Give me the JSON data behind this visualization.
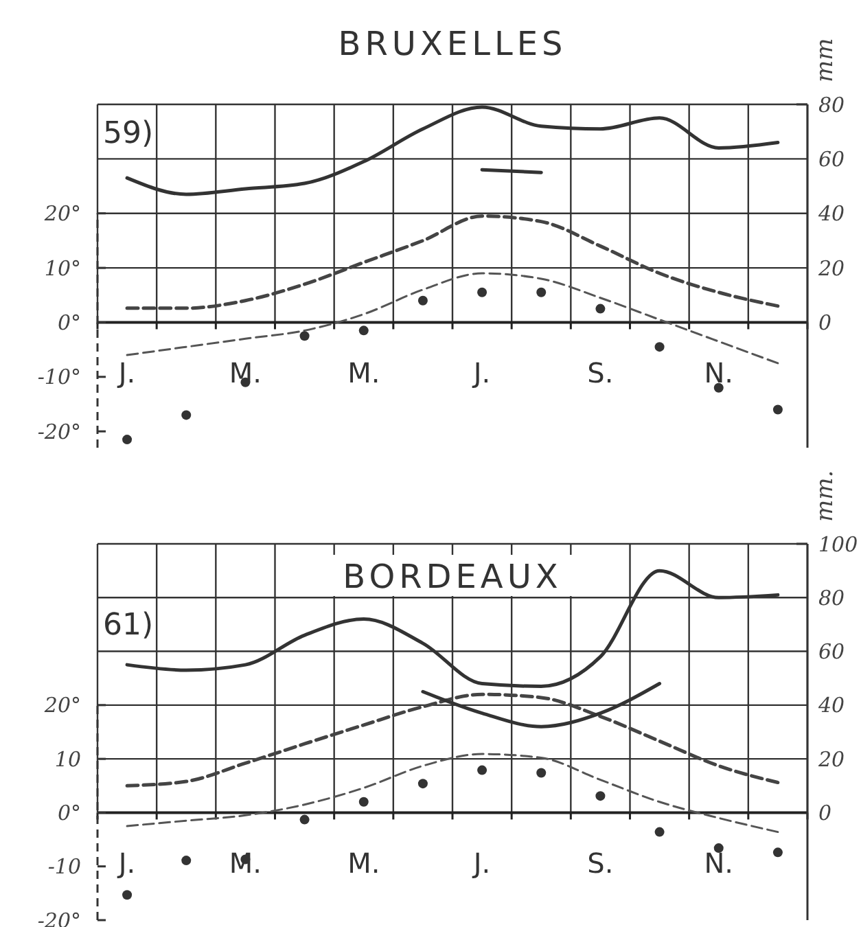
{
  "chart_data": [
    {
      "type": "line",
      "title": "BRUXELLES",
      "annotations": [
        "59)"
      ],
      "y2label": "mm",
      "grid": true,
      "categories": [
        "J.",
        null,
        "M.",
        null,
        "M.",
        null,
        "J.",
        null,
        "S.",
        null,
        "N.",
        null
      ],
      "ylim": [
        -23,
        40
      ],
      "yticks": [
        {
          "value": -20,
          "label": "-20°"
        },
        {
          "value": -10,
          "label": "-10°"
        },
        {
          "value": 0,
          "label": "0°"
        },
        {
          "value": 10,
          "label": "10°"
        },
        {
          "value": 20,
          "label": "20°"
        }
      ],
      "y2lim": [
        -46,
        80
      ],
      "y2ticks": [
        0,
        20,
        40,
        60,
        80
      ],
      "series": [
        {
          "type": "line",
          "axis": "y2",
          "color": "#333333",
          "line_style": "solid",
          "values": [
            53,
            47,
            49,
            51,
            59,
            71,
            79,
            72,
            71,
            75,
            64,
            66
          ]
        },
        {
          "type": "line",
          "color": "#444444",
          "line_style": "dashed",
          "values": [
            2.6,
            2.6,
            4,
            7,
            11,
            15,
            19.5,
            18.5,
            14,
            9,
            5.5,
            3
          ]
        },
        {
          "type": "line",
          "color": "#555555",
          "line_style": "dashed",
          "values": [
            -6,
            -4.5,
            -3,
            -1.5,
            1.5,
            6,
            9,
            8,
            4.5,
            0.5,
            -3.5,
            -7.5
          ]
        },
        {
          "type": "scatter",
          "color": "#333333",
          "marker": "circle",
          "values": [
            -21.5,
            -17,
            -11,
            -2.5,
            -1.5,
            4,
            5.5,
            5.5,
            2.5,
            -4.5,
            -12,
            -16
          ]
        },
        {
          "type": "line",
          "axis": "y2",
          "color": "#333333",
          "line_style": "solid",
          "values": [
            null,
            null,
            null,
            null,
            null,
            null,
            56,
            55,
            null,
            null,
            null,
            null
          ]
        }
      ]
    },
    {
      "type": "line",
      "title": "BORDEAUX",
      "annotations": [
        "61)"
      ],
      "y2label": "mm.",
      "grid": true,
      "categories": [
        "J.",
        null,
        "M.",
        null,
        "M.",
        null,
        "J.",
        null,
        "S.",
        null,
        "N.",
        null
      ],
      "ylim": [
        -20,
        50
      ],
      "yticks": [
        {
          "value": -20,
          "label": "-20°"
        },
        {
          "value": -10,
          "label": "-10"
        },
        {
          "value": 0,
          "label": "0°"
        },
        {
          "value": 10,
          "label": "10"
        },
        {
          "value": 20,
          "label": "20°"
        }
      ],
      "y2lim": [
        -40,
        100
      ],
      "y2ticks": [
        0,
        20,
        40,
        60,
        80,
        100
      ],
      "series": [
        {
          "type": "line",
          "axis": "y2",
          "color": "#333333",
          "line_style": "solid",
          "values": [
            55,
            53,
            55,
            66,
            72,
            63,
            48,
            47,
            58,
            90,
            80,
            81
          ]
        },
        {
          "type": "line",
          "color": "#444444",
          "line_style": "dashed",
          "values": [
            5,
            5.8,
            9.2,
            12.8,
            16.3,
            19.7,
            22,
            21.4,
            17.9,
            13.3,
            8.7,
            5.6
          ]
        },
        {
          "type": "line",
          "color": "#555555",
          "line_style": "dashed",
          "values": [
            -2.5,
            -1.5,
            -0.5,
            1.5,
            4.6,
            8.7,
            10.9,
            10.2,
            6.1,
            2,
            -1,
            -3.6
          ]
        },
        {
          "type": "scatter",
          "color": "#333333",
          "marker": "circle",
          "values": [
            -15.3,
            -8.9,
            -8.7,
            -1.3,
            2,
            5.4,
            7.9,
            7.4,
            3.1,
            -3.6,
            -6.6,
            -7.4
          ]
        },
        {
          "type": "line",
          "axis": "y2",
          "color": "#333333",
          "line_style": "solid",
          "values": [
            null,
            null,
            null,
            null,
            null,
            45,
            37,
            32,
            37,
            48,
            null,
            null
          ]
        }
      ]
    }
  ]
}
